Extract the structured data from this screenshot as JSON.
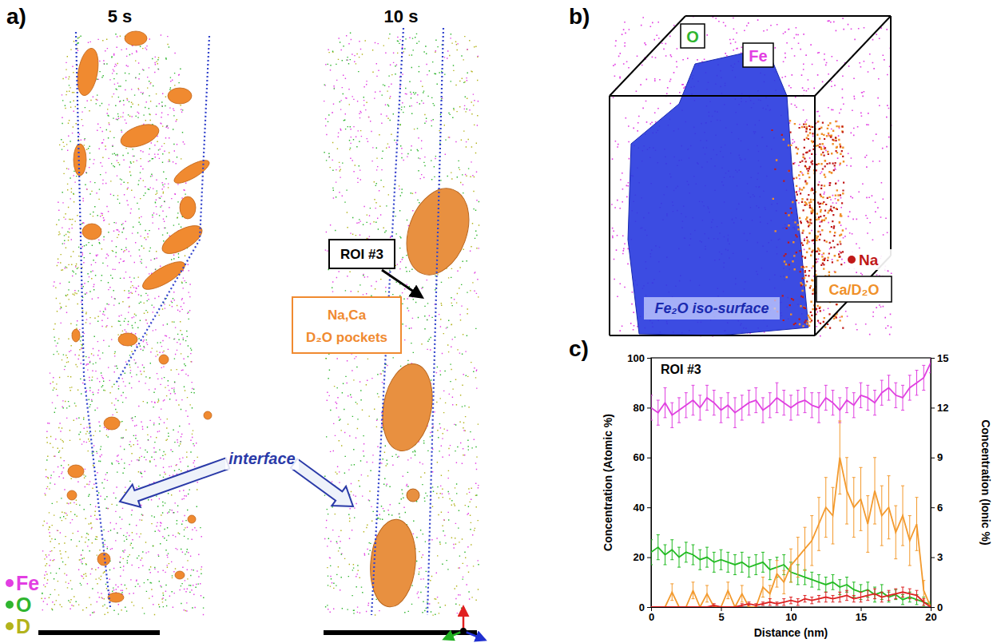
{
  "figure": {
    "a": {
      "label": "a)",
      "times": [
        "5 s",
        "10 s"
      ],
      "roi": "ROI #3",
      "pockets": [
        "Na,Ca",
        "D₂O pockets"
      ],
      "interface": "interface",
      "legend": [
        {
          "name": "Fe",
          "color": "#e23ee2"
        },
        {
          "name": "O",
          "color": "#2fb52f"
        },
        {
          "name": "D",
          "color": "#b3b31c"
        }
      ]
    },
    "b": {
      "label": "b)",
      "O": "O",
      "Fe": "Fe",
      "Na": "Na",
      "ca": "Ca/D₂O",
      "iso": "Fe₂O iso-surface"
    }
  },
  "chart_data": {
    "type": "line",
    "panel_label": "c)",
    "title": "ROI #3",
    "x_label": "Distance (nm)",
    "y_label": "Concentration (Atomic %)",
    "y2_label": "Concentration (Ionic %)",
    "x": [
      0,
      0.5,
      1,
      1.5,
      2,
      2.5,
      3,
      3.5,
      4,
      4.5,
      5,
      5.5,
      6,
      6.5,
      7,
      7.5,
      8,
      8.5,
      9,
      9.5,
      10,
      10.5,
      11,
      11.5,
      12,
      12.5,
      13,
      13.5,
      14,
      14.5,
      15,
      15.5,
      16,
      16.5,
      17,
      17.5,
      18,
      18.5,
      19,
      19.5,
      20
    ],
    "xlim": [
      0,
      20
    ],
    "xticks": [
      0,
      5,
      10,
      15,
      20
    ],
    "ylim": [
      0,
      100
    ],
    "yticks": [
      0,
      20,
      40,
      60,
      80,
      100
    ],
    "y2lim": [
      0,
      15
    ],
    "y2ticks": [
      0,
      3,
      6,
      9,
      12,
      15
    ],
    "series": [
      {
        "color": "#e040e0",
        "values": [
          80,
          78,
          82,
          77,
          79,
          81,
          83,
          80,
          84,
          82,
          79,
          81,
          78,
          80,
          82,
          83,
          79,
          81,
          84,
          82,
          80,
          82,
          83,
          81,
          80,
          84,
          82,
          79,
          83,
          81,
          85,
          84,
          82,
          86,
          88,
          85,
          84,
          88,
          90,
          92,
          98
        ],
        "errors": [
          5,
          5,
          6,
          5,
          5,
          5,
          6,
          5,
          5,
          5,
          5,
          5,
          6,
          5,
          5,
          5,
          5,
          5,
          6,
          5,
          5,
          5,
          5,
          5,
          6,
          5,
          5,
          5,
          5,
          5,
          5,
          5,
          5,
          5,
          5,
          5,
          5,
          5,
          5,
          5,
          4
        ]
      },
      {
        "color": "#22bb22",
        "values": [
          22,
          24,
          21,
          23,
          20,
          22,
          21,
          19,
          20,
          18,
          19,
          18,
          17,
          18,
          16,
          17,
          18,
          15,
          16,
          17,
          14,
          13,
          12,
          11,
          10,
          9,
          10,
          8,
          9,
          7,
          6,
          7,
          5,
          6,
          4,
          5,
          3,
          4,
          3,
          2,
          1
        ],
        "errors": [
          5,
          5,
          4,
          4,
          4,
          4,
          4,
          4,
          4,
          4,
          4,
          4,
          4,
          4,
          4,
          4,
          4,
          4,
          4,
          4,
          4,
          4,
          3,
          3,
          3,
          3,
          3,
          3,
          3,
          3,
          3,
          3,
          3,
          3,
          2,
          2,
          2,
          2,
          2,
          2,
          1
        ]
      },
      {
        "color": "#f39a2e",
        "axis": "y2",
        "values": [
          0,
          0,
          0,
          0.9,
          0,
          0,
          1,
          0,
          0.8,
          0,
          0,
          1,
          0,
          0.8,
          0,
          0,
          1.2,
          0.8,
          2,
          1.5,
          2.5,
          3,
          3.5,
          4,
          5,
          6,
          5.5,
          9,
          7,
          6,
          6.5,
          5,
          7,
          5.5,
          6,
          4.5,
          5.5,
          4,
          5,
          1,
          0
        ],
        "errors": [
          0,
          0,
          0,
          0.5,
          0,
          0,
          0.5,
          0,
          0.5,
          0,
          0,
          0.5,
          0,
          0.5,
          0,
          0,
          0.6,
          0.5,
          0.8,
          0.7,
          1,
          1.2,
          1.3,
          1.5,
          1.6,
          1.8,
          1.7,
          2.2,
          2,
          1.8,
          1.9,
          1.7,
          2,
          1.8,
          1.9,
          1.6,
          1.8,
          1.5,
          1.6,
          0.6,
          0
        ]
      },
      {
        "color": "#dd2222",
        "axis": "y2",
        "values": [
          0,
          0,
          0,
          0,
          0,
          0,
          0,
          0,
          0,
          0.1,
          0,
          0,
          0,
          0.1,
          0.2,
          0.1,
          0.2,
          0.3,
          0.2,
          0.3,
          0.4,
          0.3,
          0.5,
          0.4,
          0.5,
          0.6,
          0.5,
          0.6,
          0.7,
          0.5,
          0.6,
          0.7,
          0.8,
          0.6,
          0.7,
          0.8,
          0.9,
          0.8,
          0.7,
          0.3,
          0
        ],
        "errors": [
          0,
          0,
          0,
          0,
          0,
          0,
          0,
          0,
          0,
          0.1,
          0,
          0,
          0,
          0.1,
          0.1,
          0.1,
          0.1,
          0.2,
          0.1,
          0.2,
          0.2,
          0.2,
          0.2,
          0.2,
          0.2,
          0.3,
          0.2,
          0.3,
          0.3,
          0.2,
          0.3,
          0.3,
          0.3,
          0.3,
          0.3,
          0.3,
          0.3,
          0.3,
          0.3,
          0.2,
          0
        ]
      }
    ]
  }
}
